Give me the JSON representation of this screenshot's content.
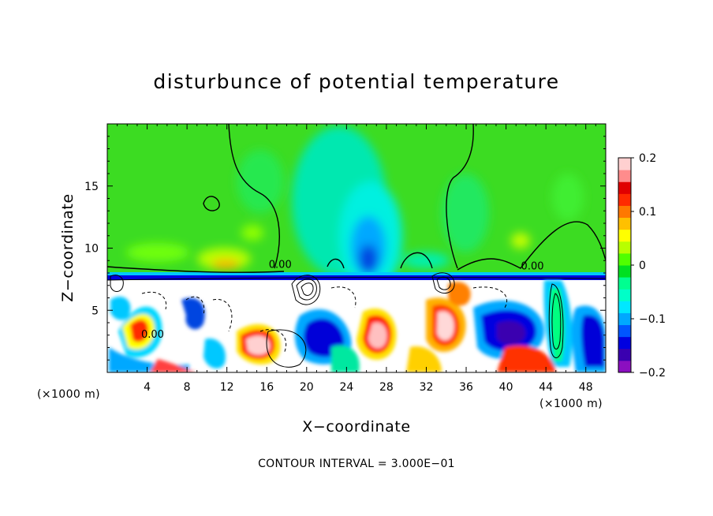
{
  "chart_data": {
    "type": "heatmap",
    "title": "disturbunce of potential temperature",
    "xlabel": "X−coordinate",
    "ylabel": "Z−coordinate",
    "x_unit": "(×1000 m)",
    "x_unit_right": "(×1000 m)",
    "footer": "CONTOUR INTERVAL = 3.000E−01",
    "xlim": [
      0,
      50
    ],
    "ylim": [
      0,
      20
    ],
    "x_ticks": [
      4,
      8,
      12,
      16,
      20,
      24,
      28,
      32,
      36,
      40,
      44,
      48
    ],
    "y_ticks": [
      5,
      10,
      15
    ],
    "colorbar": {
      "vmin": -0.2,
      "vmax": 0.2,
      "ticks": [
        {
          "value": 0.2,
          "label": "0.2"
        },
        {
          "value": 0.1,
          "label": "0.1"
        },
        {
          "value": 0.0,
          "label": "0"
        },
        {
          "value": -0.1,
          "label": "−0.1"
        },
        {
          "value": -0.2,
          "label": "−0.2"
        }
      ],
      "colors": [
        "#8b0fc0",
        "#3a00b0",
        "#0000e0",
        "#0055ff",
        "#00a8ff",
        "#00e8ff",
        "#00ffc8",
        "#00ff90",
        "#00e020",
        "#50ff00",
        "#b8ff00",
        "#ffff00",
        "#ffc000",
        "#ff7800",
        "#ff2a00",
        "#e00000",
        "#ff8c8c",
        "#ffd0d0"
      ]
    },
    "contour_labels": [
      {
        "text": "0.00",
        "x": 16.2,
        "y": 8.4
      },
      {
        "text": "0.00",
        "x": 41.5,
        "y": 8.3
      },
      {
        "text": "0.00",
        "x": 3.4,
        "y": 2.8
      }
    ],
    "grid": false
  }
}
